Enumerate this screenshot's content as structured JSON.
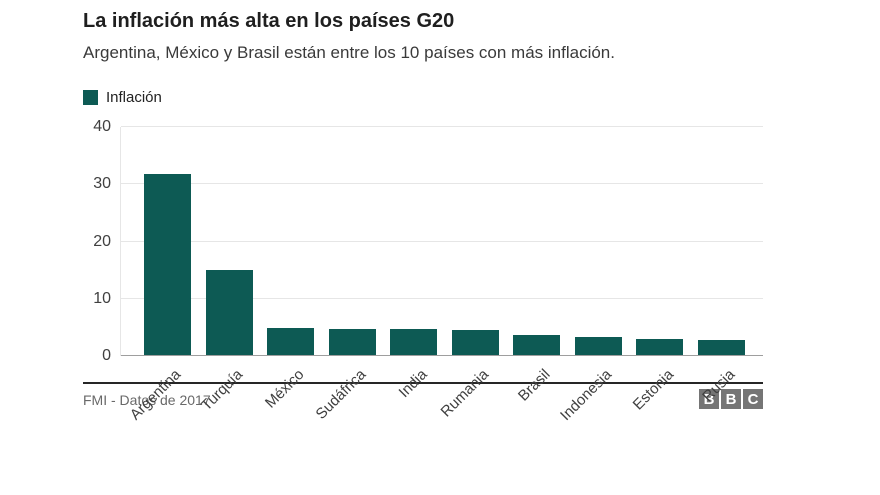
{
  "header": {
    "title": "La inflación más alta en los países G20",
    "subtitle": "Argentina, México y Brasil están entre los 10 países con más inflación."
  },
  "legend": {
    "label": "Inflación",
    "color": "#0d5a54"
  },
  "chart_data": {
    "type": "bar",
    "title": "La inflación más alta en los países G20",
    "subtitle": "Argentina, México y Brasil están entre los 10 países con más inflación.",
    "legend": [
      "Inflación"
    ],
    "legend_position": "top-left",
    "categories": [
      "Argentina",
      "Turquía",
      "México",
      "Sudáfrica",
      "India",
      "Rumania",
      "Brasil",
      "Indonesia",
      "Estonia",
      "Rusia"
    ],
    "values": [
      31.8,
      15,
      4.9,
      4.8,
      4.7,
      4.6,
      3.7,
      3.4,
      3,
      2.8
    ],
    "xlabel": "",
    "ylabel": "",
    "ylim": [
      0,
      40
    ],
    "yticks": [
      0,
      10,
      20,
      30,
      40
    ],
    "grid": true,
    "bar_color": "#0d5a54",
    "source": "FMI - Datos de 2017"
  },
  "footer": {
    "source": "FMI - Datos de 2017",
    "logo_letters": [
      "B",
      "B",
      "C"
    ]
  }
}
